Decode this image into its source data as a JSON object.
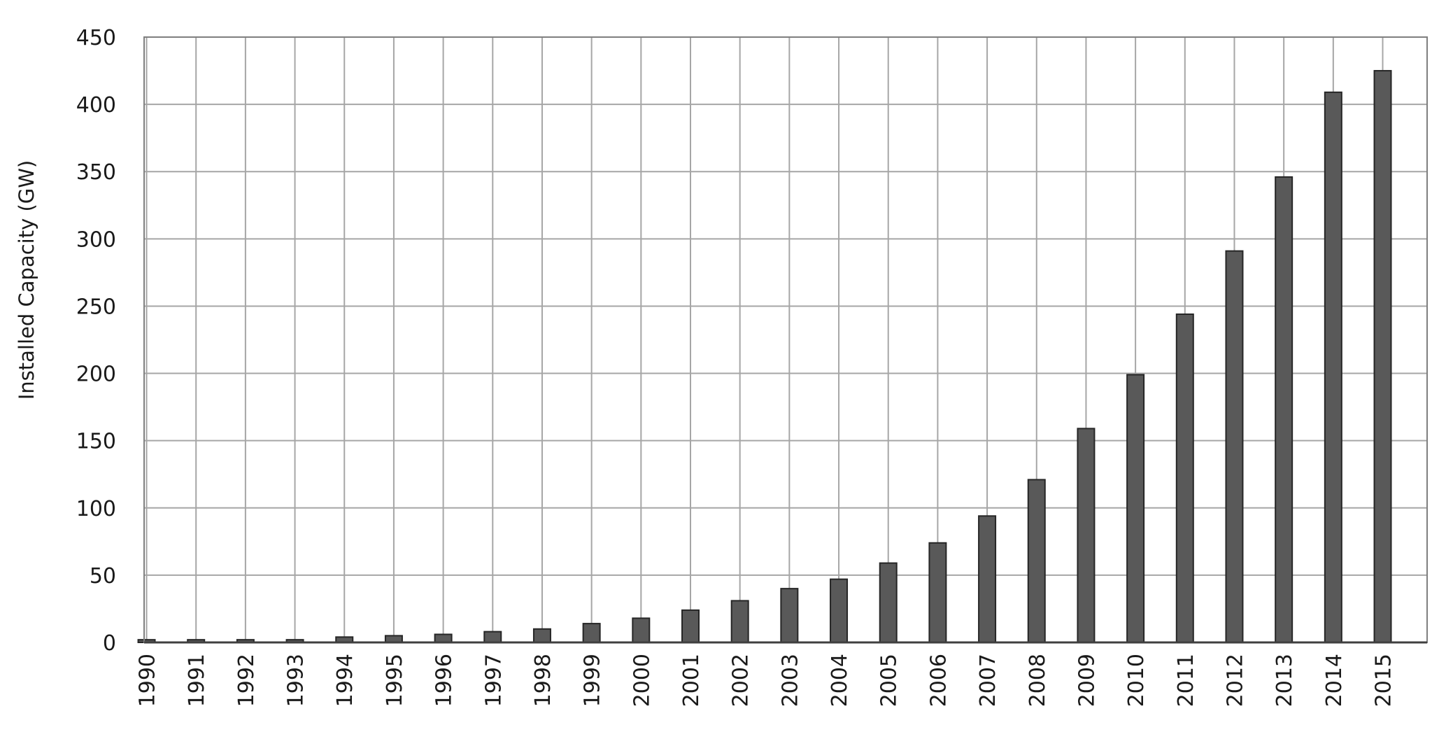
{
  "chart_data": {
    "type": "bar",
    "title": "",
    "xlabel": "",
    "ylabel": "Installed Capacity (GW)",
    "ylim": [
      0,
      450
    ],
    "yticks": [
      0,
      50,
      100,
      150,
      200,
      250,
      300,
      350,
      400,
      450
    ],
    "grid": true,
    "legend": "none",
    "categories": [
      "1990",
      "1991",
      "1992",
      "1993",
      "1994",
      "1995",
      "1996",
      "1997",
      "1998",
      "1999",
      "2000",
      "2001",
      "2002",
      "2003",
      "2004",
      "2005",
      "2006",
      "2007",
      "2008",
      "2009",
      "2010",
      "2011",
      "2012",
      "2013",
      "2014",
      "2015"
    ],
    "values": [
      2,
      2,
      2,
      2,
      4,
      5,
      6,
      8,
      10,
      14,
      18,
      24,
      31,
      40,
      47,
      59,
      74,
      94,
      121,
      159,
      199,
      244,
      291,
      346,
      409,
      425
    ],
    "colors": {
      "bar": "#595959",
      "bar_stroke": "#262626",
      "grid": "#a6a6a6",
      "frame": "#7f7f7f",
      "text": "#1a1a1a"
    }
  }
}
